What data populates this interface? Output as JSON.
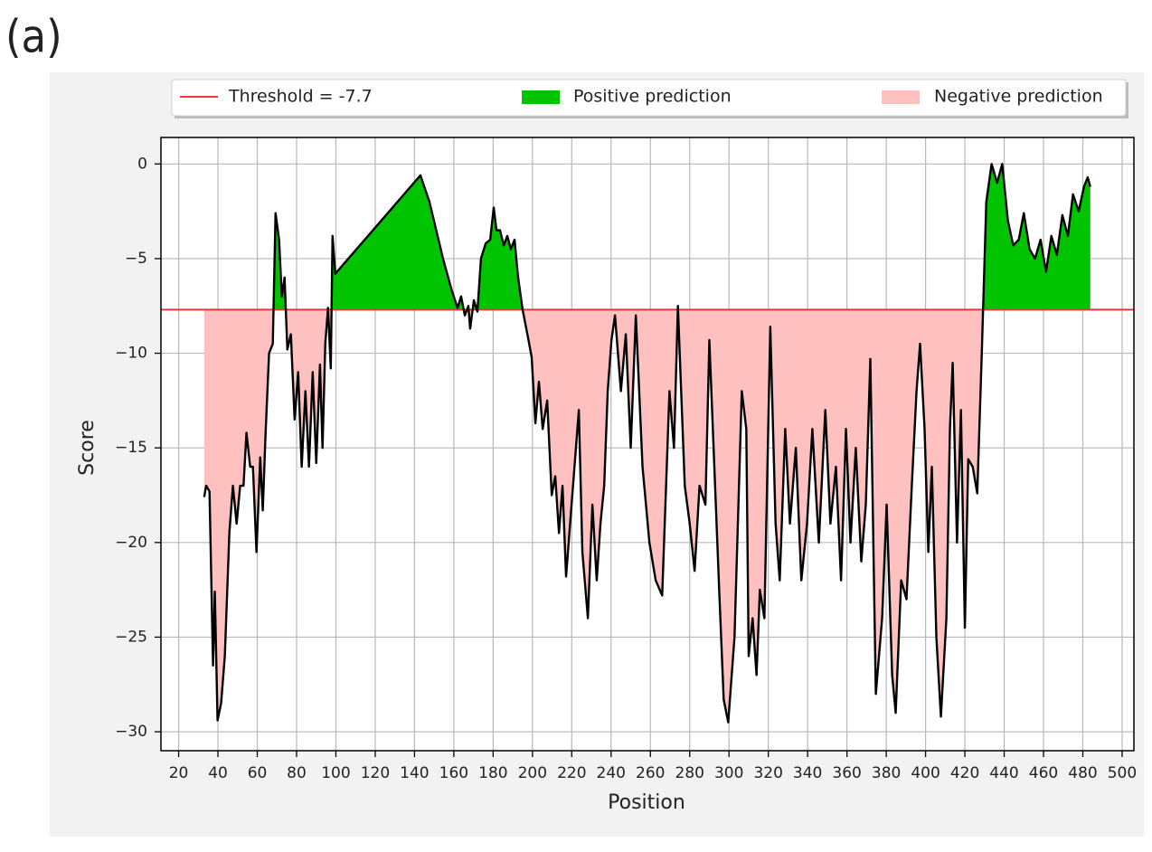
{
  "panel_label": "(a)",
  "chart_data": {
    "type": "line",
    "xlabel": "Position",
    "ylabel": "Score",
    "x": [
      33,
      34,
      35.7,
      37.5,
      38.4,
      39.8,
      41.6,
      43.5,
      45.8,
      47.6,
      49.5,
      51.3,
      53,
      54.5,
      56.4,
      57.8,
      59.6,
      61.5,
      62.8,
      64.2,
      66,
      67.9,
      69.3,
      71.1,
      72.5,
      73.9,
      75.3,
      77.1,
      79,
      80.8,
      82.6,
      84.5,
      86.3,
      88.2,
      90,
      91.9,
      93.2,
      94.6,
      96,
      97.4,
      98.3,
      99.7,
      143,
      147.6,
      154.5,
      159,
      161.9,
      163.7,
      165.6,
      167.4,
      168.3,
      170.2,
      172,
      173.8,
      176.2,
      178.5,
      180.3,
      181.7,
      183.5,
      185.4,
      187.2,
      189,
      190.9,
      192.7,
      195,
      197.8,
      199.6,
      201.5,
      203.3,
      205.2,
      207.5,
      209.8,
      211.6,
      213.5,
      215.3,
      217.1,
      219.9,
      223.6,
      225.4,
      228.2,
      230.5,
      232.7,
      234.6,
      236.5,
      238.3,
      240.2,
      242,
      245,
      247.5,
      250,
      252.6,
      256,
      259.5,
      262.7,
      266,
      269.7,
      272,
      274,
      277.5,
      280,
      282.5,
      285,
      288,
      290,
      295,
      297.3,
      299.6,
      302.8,
      306.5,
      308.8,
      310,
      312,
      314,
      315.7,
      318,
      321,
      323.7,
      325.8,
      328.6,
      331,
      334,
      336.8,
      339.7,
      342.4,
      345.7,
      349,
      351.6,
      354.4,
      357,
      359.5,
      361.8,
      364.5,
      367.3,
      369.6,
      371.9,
      374.7,
      377.9,
      380.2,
      383,
      384.8,
      387.6,
      390.3,
      393,
      395.4,
      397.2,
      399.5,
      401.4,
      403.2,
      405.5,
      407.8,
      410.6,
      412.4,
      413.8,
      416,
      418,
      420,
      421.7,
      424,
      426.3,
      428.6,
      430.9,
      433.6,
      436.4,
      439,
      441.9,
      444.6,
      447.4,
      450,
      452.9,
      455.7,
      458.5,
      461.3,
      464,
      466.8,
      469.6,
      472.4,
      475,
      477.9,
      480.6,
      482.5,
      483.8
    ],
    "values": [
      -17.6,
      -17,
      -17.3,
      -26.5,
      -22.6,
      -29.4,
      -28.5,
      -26,
      -19.5,
      -17,
      -19,
      -17,
      -17,
      -14.2,
      -16,
      -16,
      -20.5,
      -15.5,
      -18.3,
      -14.3,
      -10,
      -9.5,
      -2.6,
      -4,
      -7,
      -6,
      -9.8,
      -9,
      -13.5,
      -11,
      -16,
      -12,
      -16,
      -11,
      -15.8,
      -10.6,
      -15,
      -9.5,
      -7.6,
      -10.8,
      -3.8,
      -5.8,
      -0.6,
      -2,
      -5,
      -6.7,
      -7.6,
      -7,
      -8,
      -7.5,
      -8.7,
      -7.2,
      -7.8,
      -5,
      -4.2,
      -4,
      -2.3,
      -3.5,
      -3.5,
      -4.3,
      -3.8,
      -4.5,
      -4,
      -6,
      -7.7,
      -9.2,
      -10.2,
      -13.7,
      -11.5,
      -14,
      -12.5,
      -17.5,
      -16.5,
      -19.5,
      -17,
      -21.8,
      -18,
      -13,
      -20.5,
      -24,
      -18,
      -22,
      -19,
      -17,
      -12,
      -9.3,
      -8,
      -12,
      -9,
      -15,
      -8,
      -16,
      -20,
      -22,
      -22.8,
      -12,
      -15,
      -7.5,
      -17,
      -19,
      -21.5,
      -17,
      -18,
      -9.3,
      -22.5,
      -28.3,
      -29.5,
      -25,
      -12,
      -14,
      -26,
      -24,
      -27,
      -22.5,
      -24,
      -8.6,
      -19,
      -22,
      -14,
      -19,
      -15,
      -22,
      -19,
      -14,
      -20,
      -13,
      -19,
      -16,
      -22,
      -14,
      -20,
      -15,
      -21,
      -18,
      -10.3,
      -28,
      -24,
      -18,
      -27,
      -29,
      -22,
      -23,
      -17,
      -12,
      -9.5,
      -14,
      -20.5,
      -16,
      -25,
      -29.2,
      -24,
      -14,
      -10.5,
      -20,
      -13,
      -24.5,
      -15.6,
      -16,
      -17.4,
      -10,
      -2,
      0,
      -1,
      0,
      -3,
      -4.3,
      -4,
      -2.6,
      -4.5,
      -5,
      -4,
      -5.7,
      -3.8,
      -4.8,
      -2.7,
      -3.8,
      -1.6,
      -2.5,
      -1.2,
      -0.7,
      -1.2
    ],
    "line_color": "#000000",
    "threshold": {
      "name": "Threshold = -7.7",
      "value": -7.7,
      "color": "#e8383d"
    },
    "positive": {
      "name": "Positive prediction",
      "color": "#00c400"
    },
    "negative": {
      "name": "Negative prediction",
      "color": "#ffc0c0"
    },
    "xlim": [
      11,
      506
    ],
    "ylim": [
      -31,
      1.4
    ],
    "xticks": [
      20,
      40,
      60,
      80,
      100,
      120,
      140,
      160,
      180,
      200,
      220,
      240,
      260,
      280,
      300,
      320,
      340,
      360,
      380,
      400,
      420,
      440,
      460,
      480,
      500
    ],
    "yticks": [
      0,
      {
        "value": -5,
        "label": "−5"
      },
      {
        "value": -10,
        "label": "−10"
      },
      {
        "value": -15,
        "label": "−15"
      },
      {
        "value": -20,
        "label": "−20"
      },
      {
        "value": -25,
        "label": "−25"
      },
      {
        "value": -30,
        "label": "−30"
      }
    ],
    "grid": true
  }
}
